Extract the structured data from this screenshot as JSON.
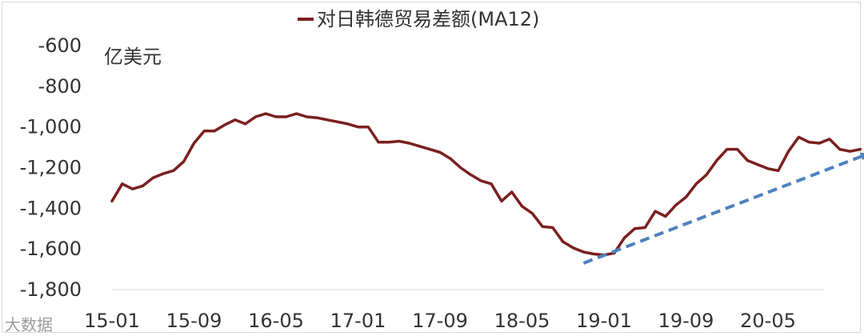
{
  "chart_data": {
    "type": "line",
    "title": "",
    "legend": {
      "placement": "top",
      "entries": [
        "对日韩德贸易差额(MA12)"
      ]
    },
    "unit_label": "亿美元",
    "xlabel": "",
    "ylabel": "",
    "ylim": [
      -1800,
      -600
    ],
    "yticks": [
      -600,
      -800,
      -1000,
      -1200,
      -1400,
      -1600,
      -1800
    ],
    "ytick_labels": [
      "-600",
      "-800",
      "-1,000",
      "-1,200",
      "-1,400",
      "-1,600",
      "-1,800"
    ],
    "xtick_labels": [
      "15-01",
      "15-09",
      "16-05",
      "17-01",
      "17-09",
      "18-05",
      "19-01",
      "19-09",
      "20-05"
    ],
    "grid": false,
    "series": [
      {
        "name": "对日韩德贸易差额(MA12)",
        "color": "#7b1f1f",
        "x_start": "15-01",
        "values": [
          -1365,
          -1280,
          -1305,
          -1290,
          -1250,
          -1230,
          -1215,
          -1170,
          -1080,
          -1020,
          -1020,
          -990,
          -965,
          -985,
          -950,
          -935,
          -950,
          -950,
          -935,
          -950,
          -955,
          -965,
          -975,
          -985,
          -1000,
          -1000,
          -1075,
          -1075,
          -1070,
          -1080,
          -1095,
          -1110,
          -1125,
          -1155,
          -1200,
          -1235,
          -1265,
          -1280,
          -1365,
          -1320,
          -1390,
          -1425,
          -1490,
          -1495,
          -1565,
          -1595,
          -1615,
          -1625,
          -1630,
          -1620,
          -1545,
          -1500,
          -1495,
          -1415,
          -1440,
          -1385,
          -1345,
          -1280,
          -1235,
          -1165,
          -1110,
          -1110,
          -1165,
          -1185,
          -1205,
          -1215,
          -1120,
          -1050,
          -1075,
          -1080,
          -1060,
          -1110,
          -1120,
          -1110
        ]
      }
    ],
    "annotations": [
      {
        "type": "dashed-arrow",
        "color": "#4f81bd",
        "from": {
          "x": "18-11",
          "y": -1670
        },
        "to": {
          "x": "21-03",
          "y": -1125
        }
      }
    ]
  },
  "watermark": {
    "text": "大数据"
  }
}
